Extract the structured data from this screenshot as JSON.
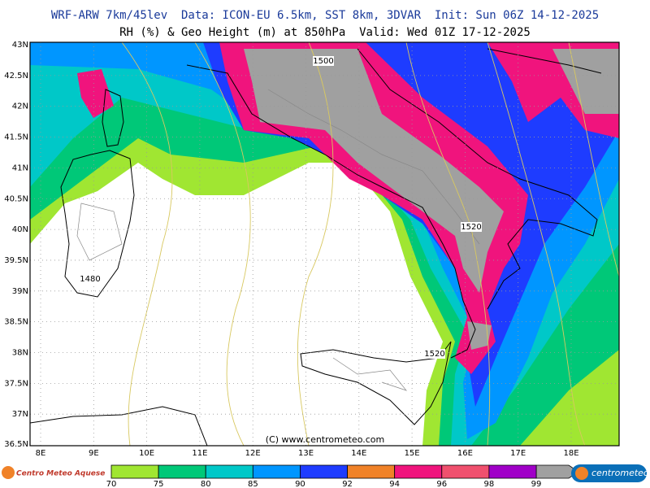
{
  "header": {
    "line1": "WRF-ARW 7km/45lev  Data: ICON-EU 6.5km, SST 8km, 3DVAR  Init: Sun 06Z 14-12-2025",
    "line2": "RH (%) & Geo Height (m) at 850hPa  Valid: Wed 01Z 17-12-2025"
  },
  "map": {
    "lat_labels": [
      "43N",
      "42.5N",
      "42N",
      "41.5N",
      "41N",
      "40.5N",
      "40N",
      "39.5N",
      "39N",
      "38.5N",
      "38N",
      "37.5N",
      "37N",
      "36.5N"
    ],
    "lon_labels": [
      "8E",
      "9E",
      "10E",
      "11E",
      "12E",
      "13E",
      "14E",
      "15E",
      "16E",
      "17E",
      "18E"
    ],
    "contour_labels": [
      "1500",
      "1520",
      "1480",
      "1520"
    ],
    "credit": "(C) www.centrometeo.com"
  },
  "colorbar": {
    "labels": [
      "70",
      "75",
      "80",
      "85",
      "90",
      "92",
      "94",
      "96",
      "98",
      "99"
    ],
    "colors": [
      "#a0e632",
      "#00c878",
      "#00c8c8",
      "#0096ff",
      "#1e3cff",
      "#f08228",
      "#f0147d",
      "#f0506e",
      "#a000c8"
    ]
  },
  "logos": {
    "left": "Centro Meteo Aquese",
    "right": "centrometeo"
  }
}
